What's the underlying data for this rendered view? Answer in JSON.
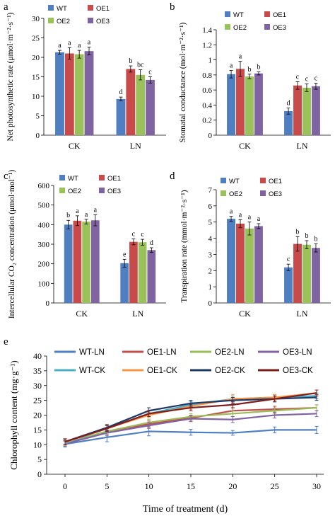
{
  "colors": {
    "WT": "#4F7EC1",
    "OE1": "#C94A4A",
    "OE2": "#9BC25A",
    "OE3": "#8064A2",
    "WT-LN": "#4F7EC1",
    "OE1-LN": "#C0504D",
    "OE2-LN": "#9BBB59",
    "OE3-LN": "#8064A2",
    "WT-CK": "#4BACC6",
    "OE1-CK": "#F79646",
    "OE2-CK": "#1F3864",
    "OE3-CK": "#7B1E1E"
  },
  "chart_data": [
    {
      "panel": "a",
      "type": "bar",
      "ylabel": "Net photosynthetic rate (μmol·m⁻²·s⁻¹)",
      "ylim": [
        0,
        30
      ],
      "yticks": [
        0,
        5,
        10,
        15,
        20,
        25,
        30
      ],
      "categories": [
        "CK",
        "LN"
      ],
      "legend": [
        "WT",
        "OE1",
        "OE2",
        "OE3"
      ],
      "series": [
        {
          "name": "WT",
          "values": [
            21.3,
            9.3
          ],
          "errors": [
            0.5,
            0.5
          ],
          "letters": [
            "a",
            "d"
          ]
        },
        {
          "name": "OE1",
          "values": [
            21.0,
            17.0
          ],
          "errors": [
            1.5,
            0.8
          ],
          "letters": [
            "a",
            "b"
          ]
        },
        {
          "name": "OE2",
          "values": [
            20.8,
            15.5
          ],
          "errors": [
            1.0,
            1.3
          ],
          "letters": [
            "a",
            "bc"
          ]
        },
        {
          "name": "OE3",
          "values": [
            21.6,
            14.2
          ],
          "errors": [
            1.0,
            0.8
          ],
          "letters": [
            "a",
            "c"
          ]
        }
      ]
    },
    {
      "panel": "b",
      "type": "bar",
      "ylabel": "Stomatal conductance (mol·m⁻²·s⁻¹)",
      "ylim": [
        0,
        1.4
      ],
      "yticks": [
        0,
        0.2,
        0.4,
        0.6,
        0.8,
        1,
        1.2,
        1.4
      ],
      "categories": [
        "CK",
        "LN"
      ],
      "legend": [
        "WT",
        "OE1",
        "OE2",
        "OE3"
      ],
      "series": [
        {
          "name": "WT",
          "values": [
            0.81,
            0.32
          ],
          "errors": [
            0.05,
            0.04
          ],
          "letters": [
            "a",
            "d"
          ]
        },
        {
          "name": "OE1",
          "values": [
            0.88,
            0.66
          ],
          "errors": [
            0.1,
            0.05
          ],
          "letters": [
            "a",
            "c"
          ]
        },
        {
          "name": "OE2",
          "values": [
            0.78,
            0.63
          ],
          "errors": [
            0.03,
            0.05
          ],
          "letters": [
            "b",
            "c"
          ]
        },
        {
          "name": "OE3",
          "values": [
            0.82,
            0.65
          ],
          "errors": [
            0.02,
            0.04
          ],
          "letters": [
            "b",
            "c"
          ]
        }
      ]
    },
    {
      "panel": "c",
      "type": "bar",
      "ylabel": "Intercellular CO₂ concentration (μmol·mol⁻¹)",
      "ylim": [
        0,
        600
      ],
      "yticks": [
        0,
        100,
        200,
        300,
        400,
        500,
        600
      ],
      "categories": [
        "CK",
        "LN"
      ],
      "legend": [
        "WT",
        "OE1",
        "OE2",
        "OE3"
      ],
      "series": [
        {
          "name": "WT",
          "values": [
            400,
            203
          ],
          "errors": [
            22,
            20
          ],
          "letters": [
            "b",
            "e"
          ]
        },
        {
          "name": "OE1",
          "values": [
            420,
            312
          ],
          "errors": [
            25,
            15
          ],
          "letters": [
            "a",
            "c"
          ]
        },
        {
          "name": "OE2",
          "values": [
            415,
            310
          ],
          "errors": [
            12,
            15
          ],
          "letters": [
            "a",
            "c"
          ]
        },
        {
          "name": "OE3",
          "values": [
            422,
            270
          ],
          "errors": [
            28,
            12
          ],
          "letters": [
            "a",
            "d"
          ]
        }
      ]
    },
    {
      "panel": "d",
      "type": "bar",
      "ylabel": "Transpiration rate (mmol·m⁻²·s⁻¹)",
      "ylim": [
        0,
        7
      ],
      "yticks": [
        0,
        1,
        2,
        3,
        4,
        5,
        6,
        7
      ],
      "categories": [
        "CK",
        "LN"
      ],
      "legend": [
        "WT",
        "OE1",
        "OE2",
        "OE3"
      ],
      "series": [
        {
          "name": "WT",
          "values": [
            5.2,
            2.2
          ],
          "errors": [
            0.15,
            0.2
          ],
          "letters": [
            "a",
            "c"
          ]
        },
        {
          "name": "OE1",
          "values": [
            4.9,
            3.65
          ],
          "errors": [
            0.25,
            0.45
          ],
          "letters": [
            "a",
            "b"
          ]
        },
        {
          "name": "OE2",
          "values": [
            4.6,
            3.6
          ],
          "errors": [
            0.4,
            0.25
          ],
          "letters": [
            "a",
            "b"
          ]
        },
        {
          "name": "OE3",
          "values": [
            4.75,
            3.4
          ],
          "errors": [
            0.15,
            0.25
          ],
          "letters": [
            "a",
            "b"
          ]
        }
      ]
    },
    {
      "panel": "e",
      "type": "line",
      "ylabel": "Chlorophyll content (mg·g⁻¹)",
      "xlabel": "Time of treatment (d)",
      "ylim": [
        0,
        40
      ],
      "yticks": [
        0,
        5,
        10,
        15,
        20,
        25,
        30,
        35,
        40
      ],
      "x": [
        0,
        5,
        10,
        15,
        20,
        25,
        30
      ],
      "xticks": [
        0,
        5,
        10,
        15,
        20,
        25,
        30
      ],
      "series": [
        {
          "name": "WT-LN",
          "values": [
            10.2,
            12.5,
            14.5,
            14.2,
            14.0,
            15.0,
            15.0
          ],
          "errors": [
            1.0,
            1.5,
            1.5,
            1.0,
            0.8,
            1.0,
            1.2
          ]
        },
        {
          "name": "OE1-LN",
          "values": [
            10.5,
            14.5,
            17.0,
            19.0,
            21.5,
            22.0,
            22.5
          ],
          "errors": [
            1.0,
            1.0,
            1.0,
            1.0,
            1.0,
            1.0,
            1.0
          ]
        },
        {
          "name": "OE2-LN",
          "values": [
            10.5,
            14.5,
            17.5,
            19.5,
            20.5,
            21.5,
            22.5
          ],
          "errors": [
            1.0,
            1.0,
            1.0,
            1.0,
            1.0,
            1.0,
            1.0
          ]
        },
        {
          "name": "OE3-LN",
          "values": [
            10.3,
            14.0,
            16.5,
            18.8,
            18.5,
            20.0,
            20.5
          ],
          "errors": [
            1.0,
            1.0,
            1.0,
            1.0,
            1.0,
            1.0,
            1.0
          ]
        },
        {
          "name": "WT-CK",
          "values": [
            10.5,
            15.5,
            20.5,
            23.5,
            25.5,
            26.0,
            26.5
          ],
          "errors": [
            1.0,
            1.0,
            1.0,
            1.0,
            1.0,
            1.0,
            1.0
          ]
        },
        {
          "name": "OE1-CK",
          "values": [
            10.8,
            15.5,
            20.0,
            23.0,
            25.5,
            26.0,
            27.5
          ],
          "errors": [
            1.0,
            1.0,
            1.0,
            1.0,
            1.5,
            1.0,
            1.0
          ]
        },
        {
          "name": "OE2-CK",
          "values": [
            11.0,
            15.8,
            21.5,
            24.0,
            25.0,
            25.5,
            26.0
          ],
          "errors": [
            1.0,
            1.0,
            1.0,
            1.0,
            1.0,
            1.0,
            1.0
          ]
        },
        {
          "name": "OE3-CK",
          "values": [
            11.0,
            15.5,
            20.5,
            22.5,
            23.5,
            25.5,
            27.5
          ],
          "errors": [
            1.0,
            1.0,
            1.0,
            1.0,
            1.0,
            1.0,
            1.0
          ]
        }
      ]
    }
  ]
}
